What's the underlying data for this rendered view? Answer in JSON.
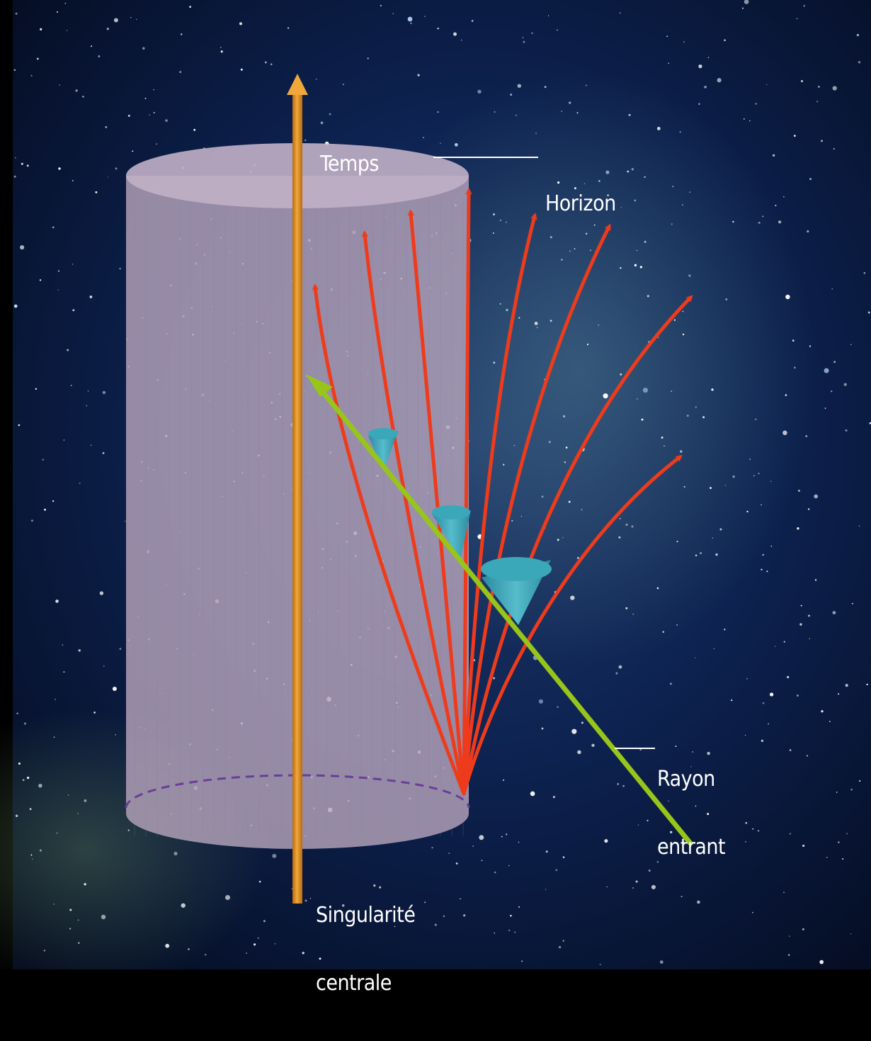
{
  "labels": {
    "time_axis": "Temps",
    "horizon": "Horizon",
    "incoming_ray_line1": "Rayon",
    "incoming_ray_line2": "entrant",
    "singularity_line1": "Singularité",
    "singularity_line2": "centrale"
  },
  "colors": {
    "background": "#07122a",
    "cylinder": "#b5a3bb",
    "time_axis": "#d98a1f",
    "outgoing_rays": "#ee3b1c",
    "incoming_ray": "#97c51a",
    "light_cones": "#3aa8b8",
    "dashed_base": "#6a3d9a"
  }
}
